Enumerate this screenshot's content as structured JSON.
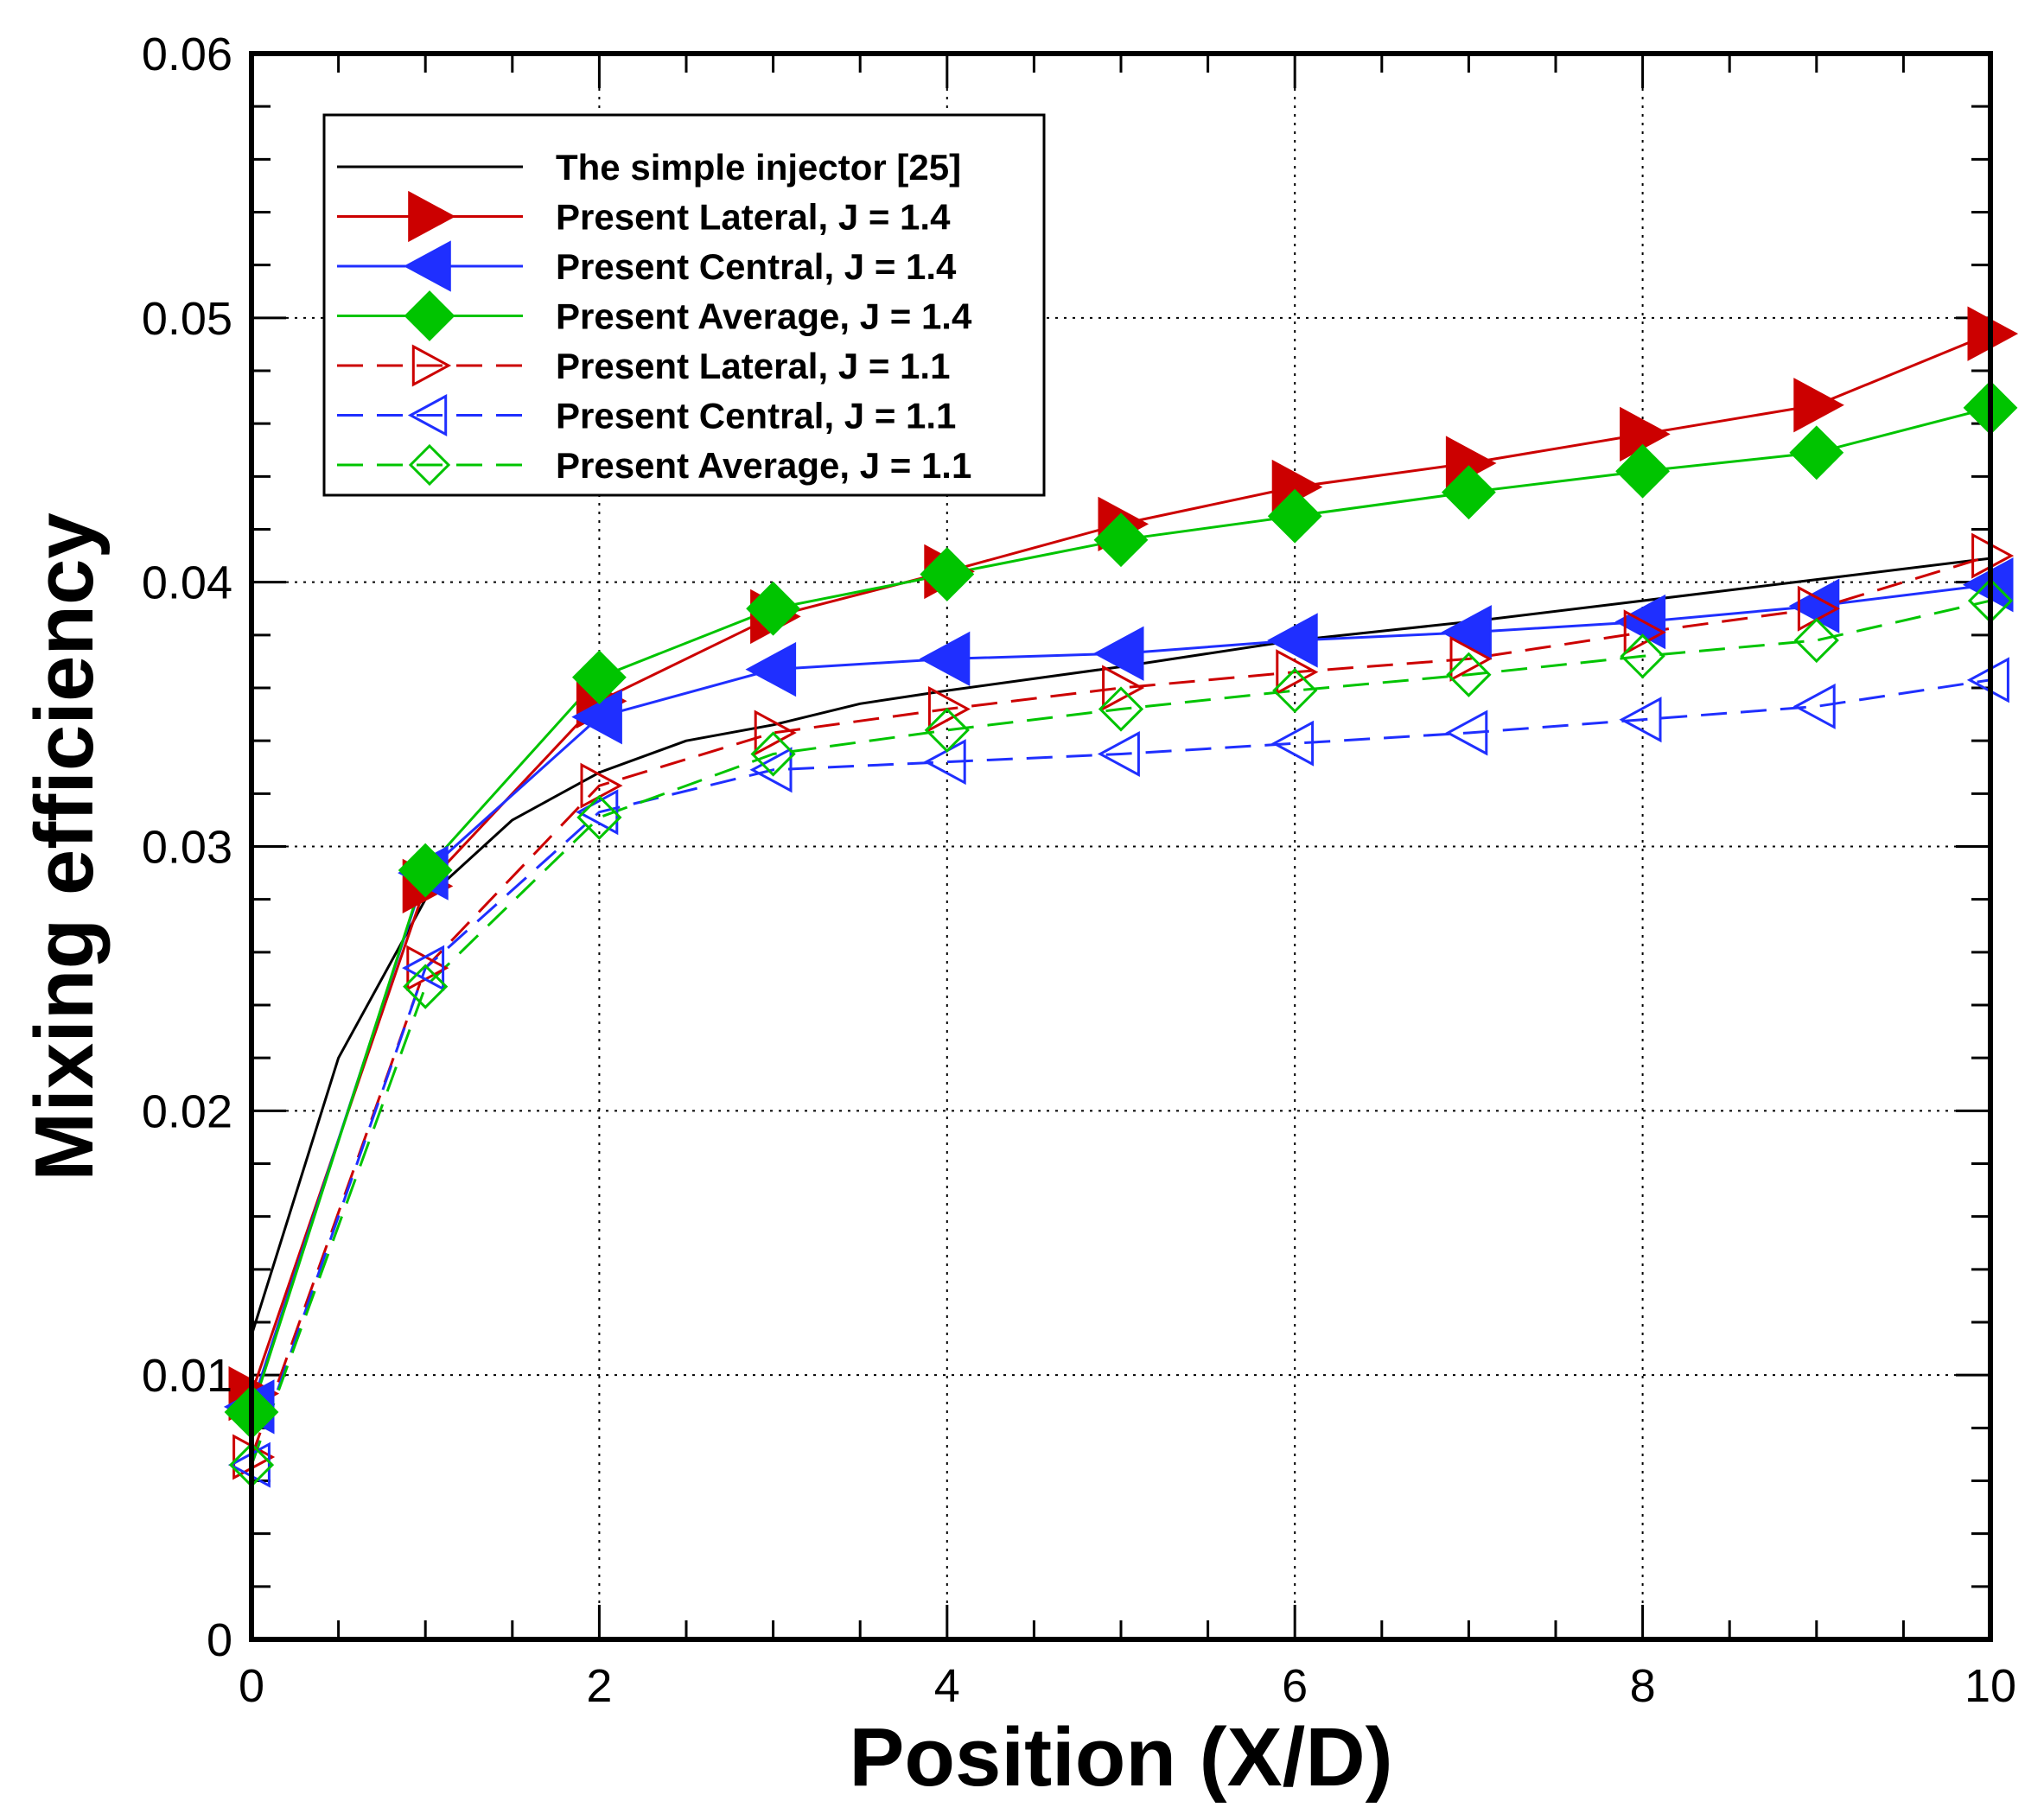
{
  "chart_data": {
    "type": "line",
    "title": "",
    "xlabel": "Position (X/D)",
    "ylabel": "Mixing efficiency",
    "xlim": [
      0,
      10
    ],
    "ylim": [
      0,
      0.06
    ],
    "xticks": [
      0,
      2,
      4,
      6,
      8,
      10
    ],
    "xtick_labels": [
      "0",
      "2",
      "4",
      "6",
      "8",
      "10"
    ],
    "yticks": [
      0,
      0.01,
      0.02,
      0.03,
      0.04,
      0.05,
      0.06
    ],
    "ytick_labels": [
      "0",
      "0.01",
      "0.02",
      "0.03",
      "0.04",
      "0.05",
      "0.06"
    ],
    "grid": true,
    "legend_position": "top-left",
    "series": [
      {
        "name": "The simple injector [25]",
        "color": "#000000",
        "dashed": false,
        "marker": "none",
        "filled": false,
        "x": [
          0,
          0.5,
          1,
          1.5,
          2,
          2.5,
          3,
          3.5,
          4,
          5,
          6,
          7,
          8,
          9,
          10
        ],
        "y": [
          0.0115,
          0.022,
          0.028,
          0.031,
          0.0328,
          0.034,
          0.0346,
          0.0354,
          0.0359,
          0.0368,
          0.0378,
          0.0385,
          0.0393,
          0.0401,
          0.0409
        ]
      },
      {
        "name": "Present Lateral, J = 1.4",
        "color": "#cc0000",
        "dashed": false,
        "marker": "triangle-right",
        "filled": true,
        "x": [
          0,
          1,
          2,
          3,
          4,
          5,
          6,
          7,
          8,
          9,
          10
        ],
        "y": [
          0.0093,
          0.0285,
          0.0355,
          0.0387,
          0.0404,
          0.0422,
          0.0436,
          0.0445,
          0.0456,
          0.0467,
          0.0494
        ]
      },
      {
        "name": "Present Central, J = 1.4",
        "color": "#1f2fff",
        "dashed": false,
        "marker": "triangle-left",
        "filled": true,
        "x": [
          0,
          1,
          2,
          3,
          4,
          5,
          6,
          7,
          8,
          9,
          10
        ],
        "y": [
          0.0088,
          0.029,
          0.0349,
          0.0367,
          0.0371,
          0.0373,
          0.0378,
          0.0381,
          0.0385,
          0.0391,
          0.0399
        ]
      },
      {
        "name": "Present Average, J = 1.4",
        "color": "#00c400",
        "dashed": false,
        "marker": "diamond",
        "filled": true,
        "x": [
          0,
          1,
          2,
          3,
          4,
          5,
          6,
          7,
          8,
          9,
          10
        ],
        "y": [
          0.0086,
          0.0291,
          0.0364,
          0.039,
          0.0403,
          0.0416,
          0.0425,
          0.0434,
          0.0442,
          0.0449,
          0.0466
        ]
      },
      {
        "name": "Present Lateral, J = 1.1",
        "color": "#cc0000",
        "dashed": true,
        "marker": "triangle-right",
        "filled": false,
        "x": [
          0,
          1,
          2,
          3,
          4,
          5,
          6,
          7,
          8,
          9,
          10
        ],
        "y": [
          0.0069,
          0.0254,
          0.0323,
          0.0343,
          0.0352,
          0.036,
          0.0366,
          0.0371,
          0.0381,
          0.039,
          0.041
        ]
      },
      {
        "name": "Present Central, J = 1.1",
        "color": "#1f2fff",
        "dashed": true,
        "marker": "triangle-left",
        "filled": false,
        "x": [
          0,
          1,
          2,
          3,
          4,
          5,
          6,
          7,
          8,
          9,
          10
        ],
        "y": [
          0.0066,
          0.0254,
          0.0313,
          0.0329,
          0.0332,
          0.0335,
          0.0339,
          0.0343,
          0.0348,
          0.0353,
          0.0363
        ]
      },
      {
        "name": "Present Average, J = 1.1",
        "color": "#00c400",
        "dashed": true,
        "marker": "diamond",
        "filled": false,
        "x": [
          0,
          1,
          2,
          3,
          4,
          5,
          6,
          7,
          8,
          9,
          10
        ],
        "y": [
          0.0066,
          0.0247,
          0.0311,
          0.0335,
          0.0344,
          0.0352,
          0.0359,
          0.0365,
          0.0372,
          0.0378,
          0.0393
        ]
      }
    ]
  }
}
